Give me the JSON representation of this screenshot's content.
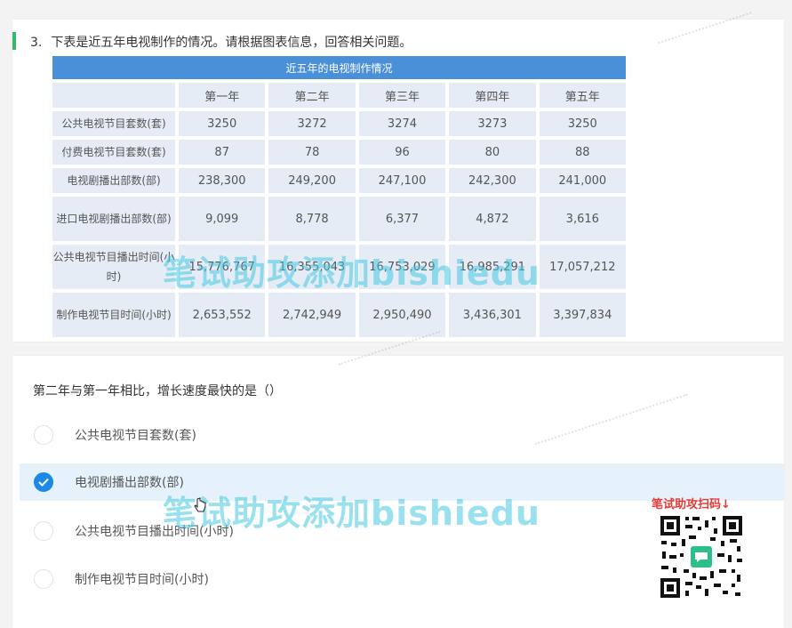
{
  "question_block": {
    "number": "3.",
    "prompt": "下表是近五年电视制作的情况。请根据图表信息，回答相关问题。"
  },
  "table": {
    "caption": "近五年的电视制作情况",
    "headers": [
      "",
      "第一年",
      "第二年",
      "第三年",
      "第四年",
      "第五年"
    ],
    "rows": [
      {
        "label": "公共电视节目套数(套)",
        "values": [
          "3250",
          "3272",
          "3274",
          "3273",
          "3250"
        ]
      },
      {
        "label": "付费电视节目套数(套)",
        "values": [
          "87",
          "78",
          "96",
          "80",
          "88"
        ]
      },
      {
        "label": "电视剧播出部数(部)",
        "values": [
          "238,300",
          "249,200",
          "247,100",
          "242,300",
          "241,000"
        ]
      },
      {
        "label": "进口电视剧播出部数(部)",
        "values": [
          "9,099",
          "8,778",
          "6,377",
          "4,872",
          "3,616"
        ]
      },
      {
        "label": "公共电视节目播出时间(小时)",
        "values": [
          "15,776,767",
          "16,355,043",
          "16,753,029",
          "16,985,291",
          "17,057,212"
        ]
      },
      {
        "label": "制作电视节目时间(小时)",
        "values": [
          "2,653,552",
          "2,742,949",
          "2,950,490",
          "3,436,301",
          "3,397,834"
        ]
      }
    ]
  },
  "question": {
    "text": "第二年与第一年相比，增长速度最快的是（）",
    "options": [
      {
        "label": "公共电视节目套数(套)",
        "selected": false
      },
      {
        "label": "电视剧播出部数(部)",
        "selected": true
      },
      {
        "label": "公共电视节目播出时间(小时)",
        "selected": false
      },
      {
        "label": "制作电视节目时间(小时)",
        "selected": false
      }
    ]
  },
  "watermark": {
    "text": "笔试助攻添加bishiedu"
  },
  "qr": {
    "caption": "笔试助攻扫码↓",
    "center_icon": "chat-icon"
  },
  "colors": {
    "accent": "#1e88e5",
    "header": "#4a90d9",
    "cell": "#e6ecf6",
    "watermark": "#46c8e1",
    "qr_caption": "#e53935",
    "green_bar": "#33b96b"
  }
}
